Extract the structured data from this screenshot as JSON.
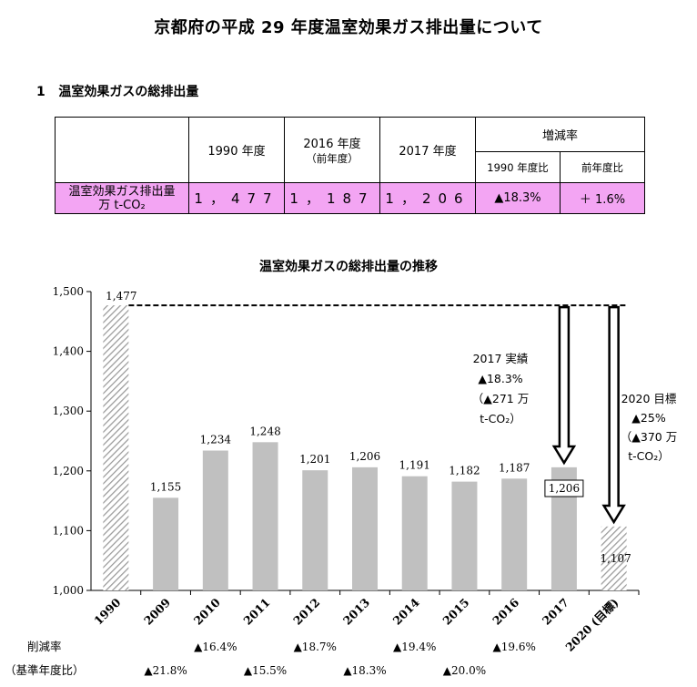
{
  "title": "京都府の平成 29 年度温室効果ガス排出量について",
  "section": {
    "number": "1",
    "heading": "温室効果ガスの総排出量"
  },
  "table": {
    "col_1990": "1990 年度",
    "col_2016": "2016 年度",
    "col_2016_sub": "（前年度）",
    "col_2017": "2017 年度",
    "col_rate": "増減率",
    "col_vs1990": "1990 年度比",
    "col_vsprev": "前年度比",
    "row_label_1": "温室効果ガス排出量",
    "row_label_2": "万 t-CO₂",
    "v1990": "1，477",
    "v2016": "1，187",
    "v2017": "1，206",
    "r1990": "▲18.3%",
    "rprev": "＋ 1.6%"
  },
  "chart_data": {
    "type": "bar",
    "title": "温室効果ガスの総排出量の推移",
    "categories": [
      "1990",
      "2009",
      "2010",
      "2011",
      "2012",
      "2013",
      "2014",
      "2015",
      "2016",
      "2017",
      "2020 (目標)"
    ],
    "values": [
      1477,
      1155,
      1234,
      1248,
      1201,
      1206,
      1191,
      1182,
      1187,
      1206,
      1107
    ],
    "value_labels": [
      "1,477",
      "1,155",
      "1,234",
      "1,248",
      "1,201",
      "1,206",
      "1,191",
      "1,182",
      "1,187",
      "1,206",
      "1,107"
    ],
    "ylim": [
      1000,
      1500
    ],
    "yticks": [
      1000,
      1100,
      1200,
      1300,
      1400,
      1500
    ],
    "ytick_labels": [
      "1,000",
      "1,100",
      "1,200",
      "1,300",
      "1,400",
      "1,500"
    ],
    "hatched_categories": [
      "1990",
      "2020 (目標)"
    ],
    "bar_color": "#c0c0c0",
    "reference_line_value": 1477,
    "reduction_label": "削減率",
    "reduction_label_sub": "（基準年度比）",
    "reduction_rates": [
      "",
      "▲21.8%",
      "▲16.4%",
      "▲15.5%",
      "▲18.7%",
      "▲18.3%",
      "▲19.4%",
      "▲20.0%",
      "▲19.6%",
      "",
      ""
    ],
    "annotations": {
      "actual_2017": [
        "2017 実績",
        "▲18.3%",
        "（▲271 万",
        "t-CO₂）"
      ],
      "target_2020": [
        "2020 目標",
        "▲25%",
        "（▲370 万",
        "t-CO₂）"
      ]
    }
  }
}
